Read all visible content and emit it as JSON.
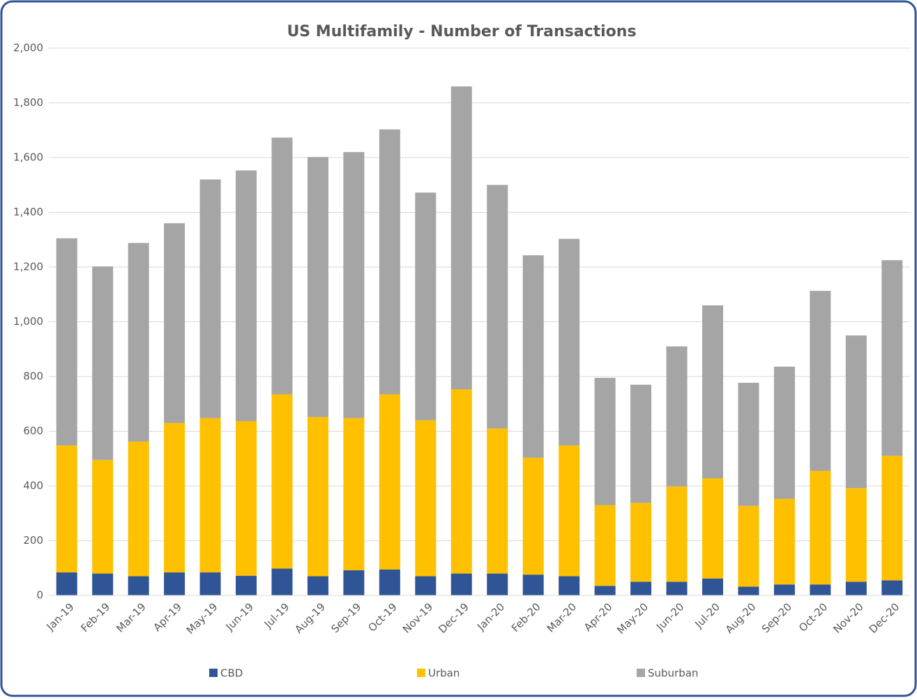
{
  "chart_data": {
    "type": "stacked-bar",
    "title": "US Multifamily - Number of Transactions",
    "categories": [
      "Jan-19",
      "Feb-19",
      "Mar-19",
      "Apr-19",
      "May-19",
      "Jun-19",
      "Jul-19",
      "Aug-19",
      "Sep-19",
      "Oct-19",
      "Nov-19",
      "Dec-19",
      "Jan-20",
      "Feb-20",
      "Mar-20",
      "Apr-20",
      "May-20",
      "Jun-20",
      "Jul-20",
      "Aug-20",
      "Sep-20",
      "Oct-20",
      "Nov-20",
      "Dec-20"
    ],
    "series": [
      {
        "name": "CBD",
        "color": "#2f5597",
        "values": [
          84,
          80,
          70,
          84,
          84,
          72,
          98,
          70,
          92,
          95,
          70,
          80,
          80,
          76,
          70,
          35,
          50,
          50,
          62,
          32,
          40,
          40,
          50,
          55
        ]
      },
      {
        "name": "Urban",
        "color": "#ffc000",
        "values": [
          464,
          415,
          492,
          546,
          564,
          565,
          637,
          582,
          556,
          640,
          570,
          673,
          530,
          427,
          478,
          295,
          288,
          348,
          366,
          295,
          313,
          415,
          342,
          455
        ]
      },
      {
        "name": "Suburban",
        "color": "#a5a5a5",
        "values": [
          757,
          707,
          726,
          730,
          872,
          916,
          938,
          950,
          972,
          968,
          832,
          1107,
          890,
          740,
          755,
          465,
          432,
          512,
          632,
          450,
          483,
          658,
          558,
          715
        ]
      }
    ],
    "ylim": [
      0,
      2000
    ],
    "yticks": [
      0,
      200,
      400,
      600,
      800,
      {
        "value": 1000,
        "label": "1,000"
      },
      {
        "value": 1200,
        "label": "1,200"
      },
      {
        "value": 1400,
        "label": "1,400"
      },
      {
        "value": 1600,
        "label": "1,600"
      },
      {
        "value": 1800,
        "label": "1,800"
      },
      {
        "value": 2000,
        "label": "2,000"
      }
    ],
    "grid": true,
    "legend": "bottom"
  }
}
